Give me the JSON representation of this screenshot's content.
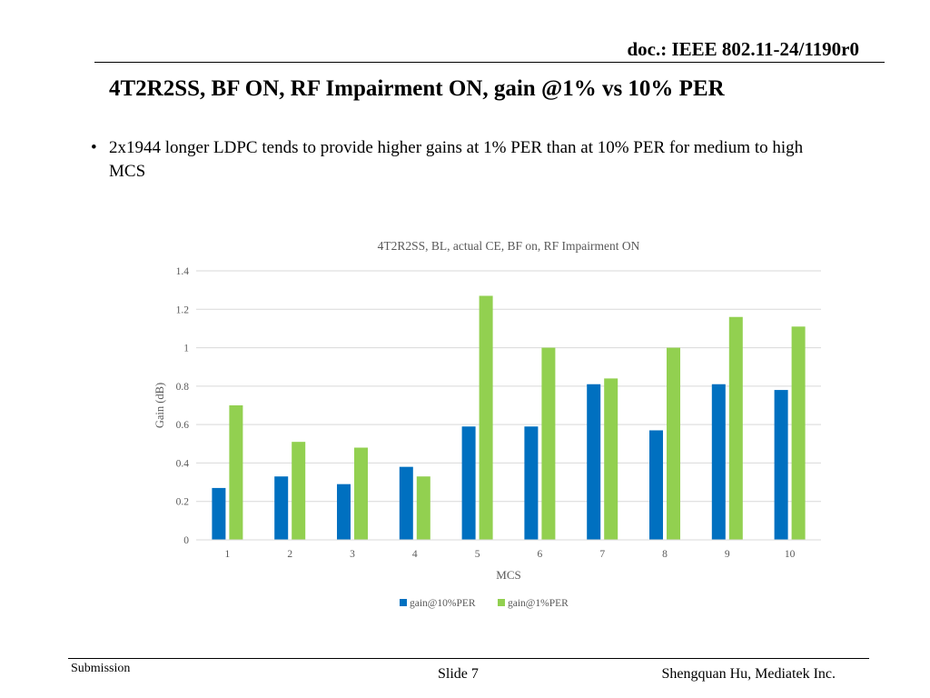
{
  "header": {
    "doc_id": "doc.: IEEE 802.11-24/1190r0",
    "title": "4T2R2SS, BF ON, RF Impairment ON, gain @1% vs 10% PER"
  },
  "bullets": [
    "2x1944 longer LDPC tends to provide higher gains at 1% PER than at 10% PER for medium to high MCS"
  ],
  "chart_data": {
    "type": "bar",
    "title": "4T2R2SS, BL, actual CE, BF on, RF Impairment ON",
    "xlabel": "MCS",
    "ylabel": "Gain (dB)",
    "ylim": [
      0,
      1.4
    ],
    "yticks": [
      "0",
      "0.2",
      "0.4",
      "0.6",
      "0.8",
      "1",
      "1.2",
      "1.4"
    ],
    "categories": [
      "1",
      "2",
      "3",
      "4",
      "5",
      "6",
      "7",
      "8",
      "9",
      "10"
    ],
    "series": [
      {
        "name": "gain@10%PER",
        "color": "#0070C0",
        "values": [
          0.27,
          0.33,
          0.29,
          0.38,
          0.59,
          0.59,
          0.81,
          0.57,
          0.81,
          0.78
        ]
      },
      {
        "name": "gain@1%PER",
        "color": "#92D050",
        "values": [
          0.7,
          0.51,
          0.48,
          0.33,
          1.27,
          1.0,
          0.84,
          1.0,
          1.16,
          1.11
        ]
      }
    ],
    "grid": true,
    "legend_position": "bottom"
  },
  "footer": {
    "left": "Submission",
    "center": "Slide 7",
    "right": "Shengquan Hu, Mediatek Inc."
  }
}
